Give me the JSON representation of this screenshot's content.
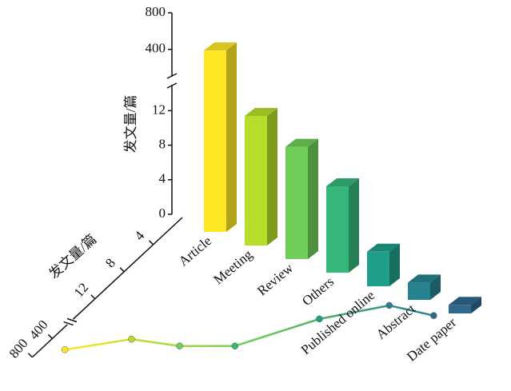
{
  "chart_data": {
    "type": "bar3d",
    "categories": [
      "Article",
      "Meeting",
      "Review",
      "Others",
      "Published online",
      "Abstract",
      "Date paper"
    ],
    "colors": [
      "#fde725",
      "#b5de2b",
      "#6ece58",
      "#35b779",
      "#1f9e89",
      "#26828e",
      "#31688e"
    ],
    "values": [
      580,
      15,
      13,
      10,
      4,
      2,
      1
    ],
    "line_values": [
      500,
      15,
      14,
      12,
      6,
      2,
      1.5
    ],
    "ylabel": "发文量/篇",
    "ylim": [
      0,
      800
    ],
    "ybreak": [
      15,
      100
    ],
    "yticks": [
      0,
      4,
      8,
      12,
      400,
      800
    ],
    "zlabel": "发文量/篇",
    "zlim": [
      0,
      800
    ],
    "zbreak": [
      15,
      100
    ],
    "zticks": [
      4,
      8,
      12,
      400,
      800
    ]
  }
}
